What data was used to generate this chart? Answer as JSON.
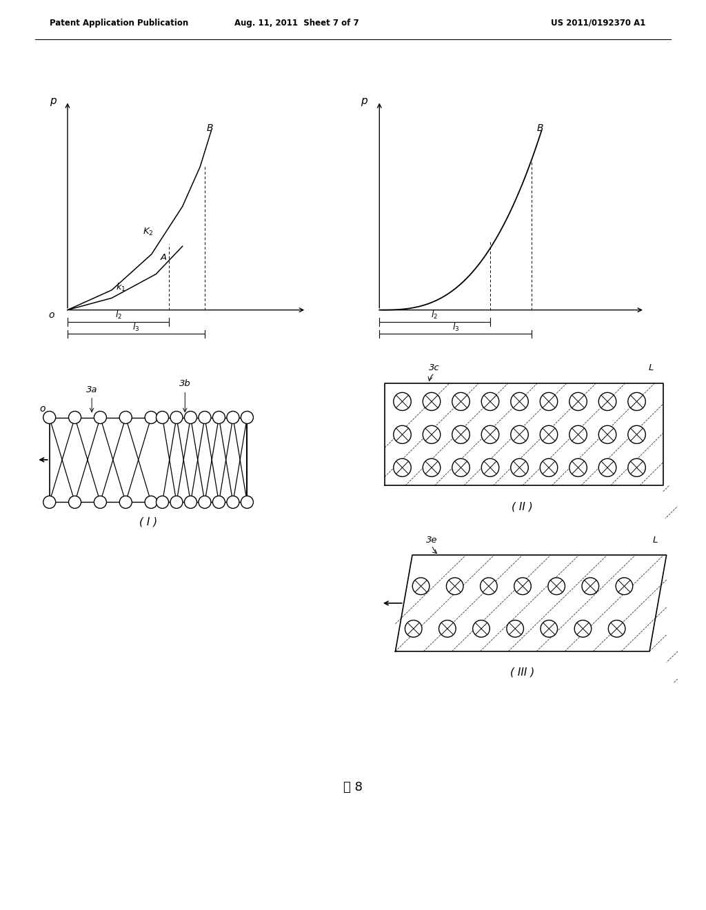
{
  "bg_color": "#ffffff",
  "header_left": "Patent Application Publication",
  "header_mid": "Aug. 11, 2011  Sheet 7 of 7",
  "header_right": "US 2011/0192370 A1",
  "fig_caption": "图 8",
  "label_I": "( I )",
  "label_II": "( II )",
  "label_III": "( III )",
  "label_3a": "3a",
  "label_3b": "3b",
  "label_3c": "3c",
  "label_3e": "3e",
  "label_L1": "L",
  "label_L2": "L"
}
